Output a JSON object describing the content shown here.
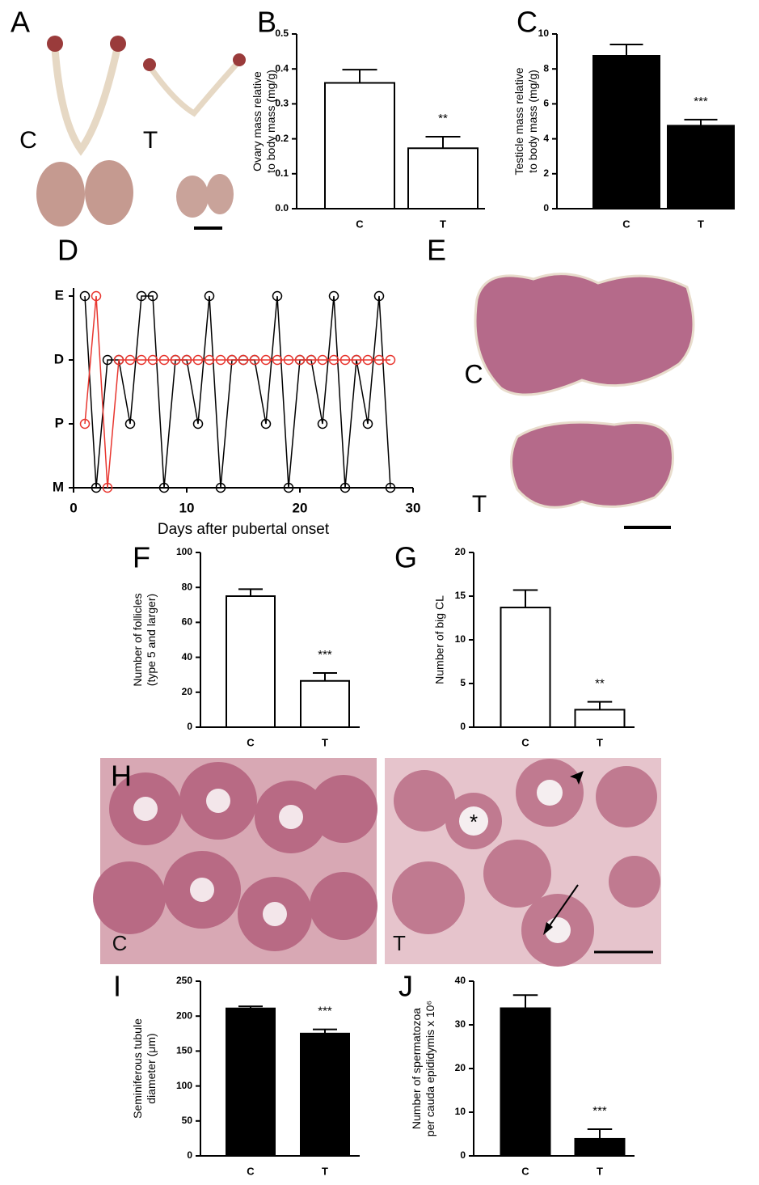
{
  "chart_data": [
    {
      "type": "bar",
      "panel": "B",
      "categories": [
        "C",
        "T"
      ],
      "values": [
        0.36,
        0.173
      ],
      "errors": [
        0.038,
        0.033
      ],
      "color": "#ffffff",
      "ylabel": [
        "Ovary mass relative",
        "to body mass (mg/g)"
      ],
      "ylim": [
        0,
        0.5
      ],
      "yticks": [
        {
          "value": 0,
          "label": "0.0"
        },
        0.1,
        0.2,
        0.3,
        0.4,
        0.5
      ],
      "significance": [
        null,
        "**"
      ]
    },
    {
      "type": "bar",
      "panel": "C",
      "categories": [
        "C",
        "T"
      ],
      "values": [
        8.75,
        4.75
      ],
      "errors": [
        0.65,
        0.35
      ],
      "color": "#000000",
      "ylabel": [
        "Testicle mass relative",
        "to body mass (mg/g)"
      ],
      "ylim": [
        0,
        10
      ],
      "yticks": [
        0,
        2,
        4,
        6,
        8,
        10
      ],
      "significance": [
        null,
        "***"
      ]
    },
    {
      "type": "line",
      "panel": "D",
      "xlabel": "Days after pubertal onset",
      "xlim": [
        0,
        30
      ],
      "xticks": [
        0,
        10,
        20,
        30
      ],
      "ylim": [
        0,
        3
      ],
      "yticks": [
        {
          "value": 0,
          "label": "M"
        },
        {
          "value": 1,
          "label": "P"
        },
        {
          "value": 2,
          "label": "D"
        },
        {
          "value": 3,
          "label": "E"
        }
      ],
      "series": [
        {
          "color": "#000000",
          "x": [
            1,
            2,
            3,
            4,
            5,
            6,
            7,
            8,
            9,
            10,
            11,
            12,
            13,
            14,
            15,
            16,
            17,
            18,
            19,
            20,
            21,
            22,
            23,
            24,
            25,
            26,
            27,
            28
          ],
          "values": [
            3,
            0,
            2,
            2,
            1,
            3,
            3,
            0,
            2,
            2,
            1,
            3,
            0,
            2,
            2,
            2,
            1,
            3,
            0,
            2,
            2,
            1,
            3,
            0,
            2,
            1,
            3,
            0
          ]
        },
        {
          "color": "#e8362f",
          "x": [
            1,
            2,
            3,
            4,
            5,
            6,
            7,
            8,
            9,
            10,
            11,
            12,
            13,
            14,
            15,
            16,
            17,
            18,
            19,
            20,
            21,
            22,
            23,
            24,
            25,
            26,
            27,
            28
          ],
          "values": [
            1,
            3,
            0,
            2,
            2,
            2,
            2,
            2,
            2,
            2,
            2,
            2,
            2,
            2,
            2,
            2,
            2,
            2,
            2,
            2,
            2,
            2,
            2,
            2,
            2,
            2,
            2,
            2
          ]
        }
      ]
    },
    {
      "type": "bar",
      "panel": "F",
      "categories": [
        "C",
        "T"
      ],
      "values": [
        75,
        26.5
      ],
      "errors": [
        4,
        4.5
      ],
      "color": "#ffffff",
      "ylabel": [
        "Number of follicles",
        "(type 5 and larger)"
      ],
      "ylim": [
        0,
        100
      ],
      "yticks": [
        0,
        20,
        40,
        60,
        80,
        100
      ],
      "significance": [
        null,
        "***"
      ]
    },
    {
      "type": "bar",
      "panel": "G",
      "categories": [
        "C",
        "T"
      ],
      "values": [
        13.7,
        2.0
      ],
      "errors": [
        2.0,
        0.9
      ],
      "color": "#ffffff",
      "ylabel": [
        "Number of big CL"
      ],
      "ylim": [
        0,
        20
      ],
      "yticks": [
        0,
        5,
        10,
        15,
        20
      ],
      "significance": [
        null,
        "**"
      ]
    },
    {
      "type": "bar",
      "panel": "I",
      "categories": [
        "C",
        "T"
      ],
      "values": [
        211,
        175
      ],
      "errors": [
        3,
        6
      ],
      "color": "#000000",
      "ylabel": [
        "Seminiferous tubule",
        "diameter (μm)"
      ],
      "ylim": [
        0,
        250
      ],
      "yticks": [
        0,
        50,
        100,
        150,
        200,
        250
      ],
      "significance": [
        null,
        "***"
      ]
    },
    {
      "type": "bar",
      "panel": "J",
      "categories": [
        "C",
        "T"
      ],
      "values": [
        33.8,
        3.9
      ],
      "errors": [
        3,
        2.2
      ],
      "color": "#000000",
      "ylabel": [
        "Number of spermatozoa",
        "per cauda epididymis x 10⁶"
      ],
      "ylim": [
        0,
        40
      ],
      "yticks": [
        0,
        10,
        20,
        30,
        40
      ],
      "significance": [
        null,
        "***"
      ]
    }
  ],
  "images": [
    {
      "panel": "A",
      "labels": [
        "C",
        "T"
      ]
    },
    {
      "panel": "E",
      "labels": [
        "C",
        "T"
      ]
    },
    {
      "panel": "H",
      "labels": [
        "C",
        "T",
        "*"
      ]
    }
  ]
}
